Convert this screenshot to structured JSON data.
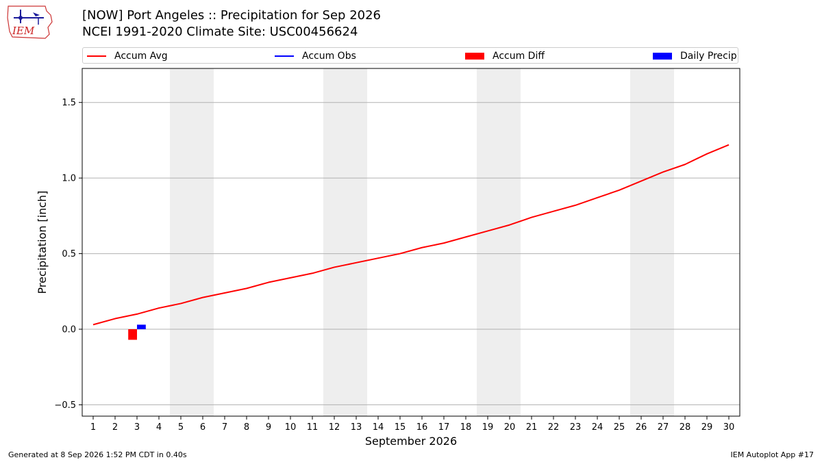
{
  "header": {
    "logo_text": "IEM",
    "title_line1": "[NOW] Port Angeles :: Precipitation for Sep 2026",
    "title_line2": "NCEI 1991-2020 Climate Site: USC00456624"
  },
  "legend": {
    "placement": "top",
    "items": [
      {
        "label": "Accum Avg",
        "kind": "line",
        "color": "#ff0000"
      },
      {
        "label": "Accum Obs",
        "kind": "line",
        "color": "#0000ff"
      },
      {
        "label": "Accum Diff",
        "kind": "box",
        "color": "#ff0000"
      },
      {
        "label": "Daily Precip",
        "kind": "box",
        "color": "#0000ff"
      }
    ]
  },
  "footer": {
    "left": "Generated at 8 Sep 2026 1:52 PM CDT in 0.40s",
    "right": "IEM Autoplot App #17"
  },
  "chart_data": {
    "type": "line",
    "xlabel": "September 2026",
    "ylabel": "Precipitation [inch]",
    "xlim": [
      0.5,
      30.5
    ],
    "ylim": [
      -0.575,
      1.725
    ],
    "y_ticks": [
      -0.5,
      0.0,
      0.5,
      1.0,
      1.5
    ],
    "y_tick_labels": [
      "−0.5",
      "0.0",
      "0.5",
      "1.0",
      "1.5"
    ],
    "x_ticks": [
      1,
      2,
      3,
      4,
      5,
      6,
      7,
      8,
      9,
      10,
      11,
      12,
      13,
      14,
      15,
      16,
      17,
      18,
      19,
      20,
      21,
      22,
      23,
      24,
      25,
      26,
      27,
      28,
      29,
      30
    ],
    "x_tick_labels": [
      "1",
      "2",
      "3",
      "4",
      "5",
      "6",
      "7",
      "8",
      "9",
      "10",
      "11",
      "12",
      "13",
      "14",
      "15",
      "16",
      "17",
      "18",
      "19",
      "20",
      "21",
      "22",
      "23",
      "24",
      "25",
      "26",
      "27",
      "28",
      "29",
      "30"
    ],
    "grid": "y",
    "weekend_shading": [
      [
        4.5,
        6.5
      ],
      [
        11.5,
        13.5
      ],
      [
        18.5,
        20.5
      ],
      [
        25.5,
        27.5
      ]
    ],
    "shading_color": "#eeeeee",
    "series": [
      {
        "name": "Accum Avg",
        "kind": "line",
        "color": "#ff0000",
        "x": [
          1,
          2,
          3,
          4,
          5,
          6,
          7,
          8,
          9,
          10,
          11,
          12,
          13,
          14,
          15,
          16,
          17,
          18,
          19,
          20,
          21,
          22,
          23,
          24,
          25,
          26,
          27,
          28,
          29,
          30
        ],
        "values": [
          0.03,
          0.07,
          0.1,
          0.14,
          0.17,
          0.21,
          0.24,
          0.27,
          0.31,
          0.34,
          0.37,
          0.41,
          0.44,
          0.47,
          0.5,
          0.54,
          0.57,
          0.61,
          0.65,
          0.69,
          0.74,
          0.78,
          0.82,
          0.87,
          0.92,
          0.98,
          1.04,
          1.09,
          1.16,
          1.22
        ]
      },
      {
        "name": "Accum Diff",
        "kind": "bar",
        "color": "#ff0000",
        "x": [
          2.8
        ],
        "values": [
          -0.07
        ]
      },
      {
        "name": "Daily Precip",
        "kind": "bar",
        "color": "#0000ff",
        "x": [
          3.2
        ],
        "values": [
          0.03
        ]
      }
    ]
  }
}
